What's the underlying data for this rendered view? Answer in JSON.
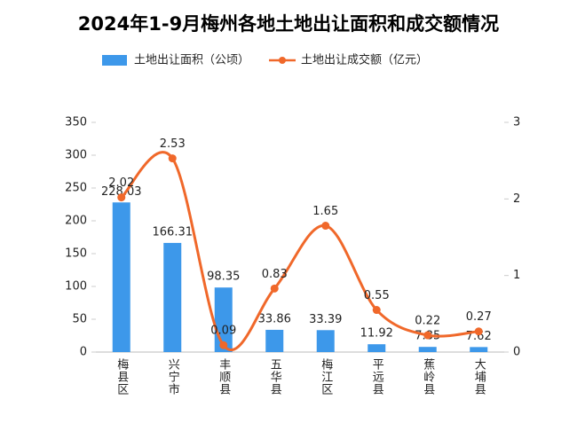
{
  "chart_data": {
    "type": "bar-line",
    "title": "2024年1-9月梅州各地土地出让面积和成交额情况",
    "categories": [
      "梅县区",
      "兴宁市",
      "丰顺县",
      "五华县",
      "梅江区",
      "平远县",
      "蕉岭县",
      "大埔县"
    ],
    "series": [
      {
        "name": "土地出让面积（公顷）",
        "type": "bar",
        "color": "#3d98ea",
        "values": [
          228.03,
          166.31,
          98.35,
          33.86,
          33.39,
          11.92,
          7.85,
          7.62
        ]
      },
      {
        "name": "土地出让成交额（亿元）",
        "type": "line",
        "axis": "y2",
        "color": "#f0682a",
        "values": [
          2.02,
          2.53,
          0.09,
          0.83,
          1.65,
          0.55,
          0.22,
          0.27
        ]
      }
    ],
    "ylim": [
      0,
      350
    ],
    "yticks": [
      0,
      50,
      100,
      150,
      200,
      250,
      300,
      350
    ],
    "y2lim": [
      0,
      3
    ],
    "y2ticks": [
      0,
      1,
      2,
      3
    ],
    "grid": false,
    "legend": "top"
  }
}
